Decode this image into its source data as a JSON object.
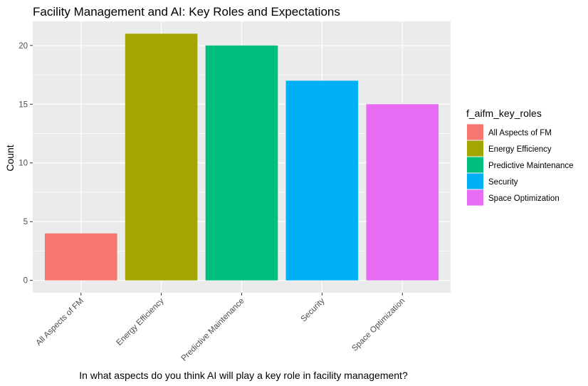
{
  "chart_data": {
    "type": "bar",
    "title": "Facility Management and AI: Key Roles and Expectations",
    "xlabel": "In what aspects do you think AI will play a key role in facility management?",
    "ylabel": "Count",
    "categories": [
      "All Aspects of FM",
      "Energy Efficiency",
      "Predictive Maintenance",
      "Security",
      "Space Optimization"
    ],
    "values": [
      4,
      21,
      20,
      17,
      15
    ],
    "colors": [
      "#F8766D",
      "#A3A500",
      "#00BF7D",
      "#00B0F6",
      "#E76BF3"
    ],
    "yticks": [
      0,
      5,
      10,
      15,
      20
    ],
    "ylim": [
      -1.05,
      22.05
    ],
    "grid": true,
    "panel_background": "#EBEBEB",
    "legend": {
      "title": "f_aifm_key_roles",
      "position": "right",
      "entries": [
        "All Aspects of FM",
        "Energy Efficiency",
        "Predictive Maintenance",
        "Security",
        "Space Optimization"
      ]
    }
  }
}
